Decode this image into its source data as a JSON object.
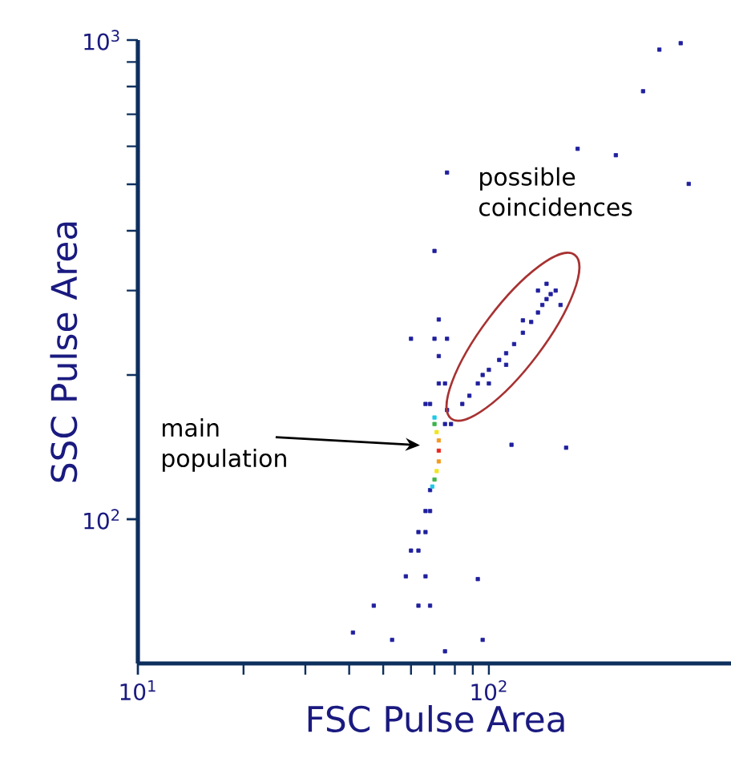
{
  "chart_data": {
    "type": "scatter",
    "xlabel": "FSC Pulse Area",
    "ylabel": "SSC Pulse Area",
    "log": "xy",
    "xlim": [
      10,
      500
    ],
    "ylim": [
      50,
      1000
    ],
    "xticks": [
      {
        "value": 10,
        "label": "10$^{1}$"
      },
      {
        "value": 100,
        "label": "10$^{2}$"
      }
    ],
    "yticks": [
      {
        "value": 100,
        "label": "10$^{2}$"
      },
      {
        "value": 1000,
        "label": "10$^{3}$"
      }
    ],
    "marker": "square",
    "annotations": [
      "main population",
      "possible coincidences"
    ],
    "x": [
      306,
      352,
      275,
      179,
      230,
      76,
      371,
      70,
      60,
      116,
      166,
      47,
      53,
      41,
      75,
      96,
      93,
      72,
      70,
      75,
      72,
      68,
      76,
      78,
      75,
      66,
      72,
      76,
      72,
      72,
      72,
      71,
      71,
      70,
      70,
      70,
      69,
      68,
      66,
      68,
      63,
      66,
      60,
      63,
      66,
      58,
      63,
      68,
      84,
      88,
      93,
      96,
      100,
      107,
      112,
      118,
      125,
      132,
      138,
      146,
      150,
      142,
      155,
      146,
      138,
      125,
      160,
      112,
      100
    ],
    "values": [
      955,
      985,
      782,
      593,
      575,
      529,
      501,
      363,
      238,
      143,
      141,
      66,
      56,
      58,
      53,
      56,
      75,
      219,
      238,
      192,
      192,
      174,
      169,
      158,
      158,
      174,
      261,
      238,
      139,
      146,
      132,
      152,
      126,
      158,
      121,
      163,
      117,
      115,
      104,
      104,
      94,
      94,
      86,
      86,
      76,
      76,
      66,
      66,
      174,
      181,
      192,
      200,
      205,
      215,
      222,
      232,
      245,
      258,
      270,
      288,
      295,
      280,
      300,
      310,
      300,
      260,
      280,
      210,
      192
    ],
    "colors": [
      "#1f1f9e",
      "#1f1f9e",
      "#1f1f9e",
      "#1f1f9e",
      "#1f1f9e",
      "#1f1f9e",
      "#1f1f9e",
      "#1f1f9e",
      "#1f1f9e",
      "#1f1f9e",
      "#1f1f9e",
      "#1f1f9e",
      "#1f1f9e",
      "#1f1f9e",
      "#1f1f9e",
      "#1f1f9e",
      "#1f1f9e",
      "#1f1f9e",
      "#1f1f9e",
      "#1f1f9e",
      "#1f1f9e",
      "#1f1f9e",
      "#1f1f9e",
      "#1f1f9e",
      "#1f1f9e",
      "#1f1f9e",
      "#1f1f9e",
      "#1f1f9e",
      "#e8261c",
      "#f29a1f",
      "#f29a1f",
      "#f0e61e",
      "#f0e61e",
      "#3cb44a",
      "#3cb44a",
      "#1ec8e6",
      "#1ec8e6",
      "#1f1f9e",
      "#1f1f9e",
      "#1f1f9e",
      "#1f1f9e",
      "#1f1f9e",
      "#1f1f9e",
      "#1f1f9e",
      "#1f1f9e",
      "#1f1f9e",
      "#1f1f9e",
      "#1f1f9e",
      "#1f1f9e",
      "#1f1f9e",
      "#1f1f9e",
      "#1f1f9e",
      "#1f1f9e",
      "#1f1f9e",
      "#1f1f9e",
      "#1f1f9e",
      "#1f1f9e",
      "#1f1f9e",
      "#1f1f9e",
      "#1f1f9e",
      "#1f1f9e",
      "#1f1f9e",
      "#1f1f9e",
      "#1f1f9e",
      "#1f1f9e",
      "#1f1f9e",
      "#1f1f9e",
      "#1f1f9e",
      "#1f1f9e"
    ]
  }
}
